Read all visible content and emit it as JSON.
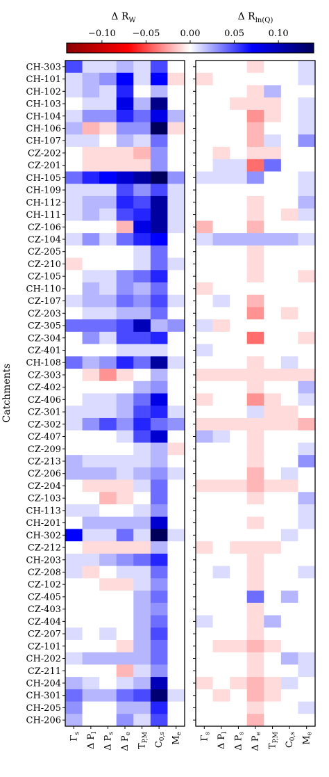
{
  "chart_data": {
    "type": "heatmap",
    "colorbar": {
      "label_left": "Δ R_W",
      "label_right": "Δ R_ln(Q)",
      "vmin": -0.14,
      "vmax": 0.14,
      "ticks": [
        -0.1,
        -0.05,
        0.0,
        0.05,
        0.1
      ],
      "tick_labels": [
        "−0.10",
        "−0.05",
        "0.00",
        "0.05",
        "0.10"
      ],
      "colormap": "seismic_r",
      "color_negative": "#8b0000",
      "color_zero": "#ffffff",
      "color_positive": "#00005a"
    },
    "ylabel": "Catchments",
    "columns": [
      {
        "base": "Γ",
        "sub": "s"
      },
      {
        "base": "Δ P",
        "sub": "l"
      },
      {
        "base": "Δ P",
        "sub": "s"
      },
      {
        "base": "Δ P",
        "sub": "e"
      },
      {
        "base": "T",
        "sub": "P,M"
      },
      {
        "base": "C",
        "sub": "0,s"
      },
      {
        "base": "M",
        "sub": "e"
      }
    ],
    "rows": [
      "CH-303",
      "CH-101",
      "CH-102",
      "CH-103",
      "CH-104",
      "CH-106",
      "CH-107",
      "CZ-202",
      "CZ-201",
      "CH-105",
      "CH-109",
      "CH-112",
      "CH-111",
      "CZ-106",
      "CZ-104",
      "CZ-205",
      "CZ-210",
      "CZ-105",
      "CH-110",
      "CZ-107",
      "CZ-203",
      "CZ-305",
      "CZ-304",
      "CZ-401",
      "CH-108",
      "CZ-303",
      "CZ-402",
      "CZ-406",
      "CZ-301",
      "CZ-302",
      "CZ-407",
      "CZ-209",
      "CZ-213",
      "CZ-206",
      "CZ-204",
      "CZ-103",
      "CH-113",
      "CH-201",
      "CH-302",
      "CZ-212",
      "CH-203",
      "CZ-208",
      "CZ-102",
      "CZ-405",
      "CZ-403",
      "CZ-404",
      "CZ-207",
      "CZ-101",
      "CH-202",
      "CZ-211",
      "CH-204",
      "CH-301",
      "CH-205",
      "CH-206"
    ],
    "panels": [
      {
        "name": "Δ R_W",
        "values": [
          [
            0.05,
            0.01,
            0.01,
            0.02,
            0.01,
            0.05,
            0.0
          ],
          [
            0.01,
            0.02,
            0.03,
            0.07,
            0.01,
            0.07,
            -0.01
          ],
          [
            0.01,
            0.02,
            0.01,
            0.06,
            0.0,
            0.02,
            0.0
          ],
          [
            0.0,
            0.01,
            0.01,
            0.08,
            0.02,
            0.12,
            0.0
          ],
          [
            0.01,
            0.03,
            0.03,
            0.06,
            0.04,
            0.08,
            0.02
          ],
          [
            0.02,
            -0.02,
            -0.01,
            0.03,
            0.03,
            0.14,
            -0.01
          ],
          [
            0.01,
            0.01,
            0.0,
            0.02,
            0.01,
            0.04,
            0.0
          ],
          [
            0.0,
            -0.01,
            -0.01,
            -0.01,
            -0.02,
            0.03,
            0.0
          ],
          [
            0.0,
            -0.01,
            -0.01,
            -0.01,
            -0.01,
            0.03,
            0.0
          ],
          [
            0.04,
            0.06,
            0.07,
            0.09,
            0.11,
            0.14,
            0.03
          ],
          [
            0.01,
            0.01,
            0.01,
            0.05,
            0.03,
            0.05,
            0.01
          ],
          [
            0.01,
            0.02,
            0.02,
            0.06,
            0.05,
            0.11,
            0.01
          ],
          [
            0.01,
            0.02,
            0.01,
            0.05,
            0.06,
            0.11,
            0.01
          ],
          [
            0.0,
            0.0,
            0.0,
            -0.02,
            0.08,
            0.11,
            0.01
          ],
          [
            0.01,
            0.03,
            0.01,
            0.04,
            0.06,
            0.07,
            0.0
          ],
          [
            0.0,
            0.0,
            0.0,
            0.0,
            0.01,
            0.04,
            0.0
          ],
          [
            -0.01,
            0.0,
            0.0,
            0.0,
            0.01,
            0.04,
            0.01
          ],
          [
            0.0,
            0.01,
            0.01,
            0.03,
            0.04,
            0.06,
            0.0
          ],
          [
            0.0,
            0.02,
            0.01,
            0.03,
            0.02,
            0.04,
            0.0
          ],
          [
            0.01,
            0.02,
            0.02,
            0.04,
            0.03,
            0.05,
            0.01
          ],
          [
            0.0,
            0.01,
            0.01,
            0.02,
            0.02,
            0.04,
            0.0
          ],
          [
            0.04,
            0.04,
            0.04,
            0.05,
            0.1,
            0.02,
            0.03
          ],
          [
            0.0,
            0.03,
            0.01,
            0.05,
            0.05,
            0.06,
            0.0
          ],
          [
            0.0,
            0.0,
            0.0,
            0.01,
            0.01,
            0.01,
            0.0
          ],
          [
            0.04,
            0.02,
            0.03,
            0.06,
            0.04,
            0.11,
            0.01
          ],
          [
            0.0,
            -0.01,
            -0.03,
            -0.01,
            0.0,
            0.02,
            0.0
          ],
          [
            0.0,
            0.0,
            0.0,
            0.0,
            0.02,
            0.03,
            0.0
          ],
          [
            0.0,
            0.01,
            0.01,
            0.02,
            0.04,
            0.08,
            0.0
          ],
          [
            0.01,
            0.01,
            0.01,
            0.02,
            0.05,
            0.06,
            0.01
          ],
          [
            0.01,
            0.03,
            0.05,
            0.03,
            0.06,
            0.04,
            0.03
          ],
          [
            0.0,
            0.0,
            0.0,
            0.01,
            0.05,
            0.09,
            0.0
          ],
          [
            0.0,
            0.0,
            0.0,
            0.0,
            0.01,
            0.02,
            -0.01
          ],
          [
            0.02,
            0.01,
            0.01,
            0.01,
            0.01,
            0.02,
            0.0
          ],
          [
            0.02,
            0.02,
            0.02,
            0.01,
            0.02,
            0.03,
            0.01
          ],
          [
            0.0,
            -0.01,
            -0.01,
            -0.01,
            0.01,
            0.04,
            0.0
          ],
          [
            0.0,
            0.0,
            -0.02,
            -0.01,
            0.0,
            0.04,
            0.0
          ],
          [
            0.01,
            0.01,
            0.0,
            0.0,
            0.01,
            0.03,
            0.0
          ],
          [
            0.0,
            0.02,
            0.02,
            0.02,
            0.02,
            0.09,
            0.0
          ],
          [
            0.07,
            0.01,
            0.01,
            0.04,
            0.01,
            0.14,
            0.01
          ],
          [
            0.0,
            -0.01,
            -0.01,
            -0.01,
            -0.01,
            0.02,
            0.0
          ],
          [
            0.01,
            0.01,
            0.02,
            0.03,
            0.04,
            0.06,
            0.0
          ],
          [
            0.01,
            -0.01,
            0.0,
            0.01,
            0.01,
            0.04,
            0.0
          ],
          [
            0.0,
            0.0,
            -0.01,
            -0.01,
            0.01,
            0.03,
            0.0
          ],
          [
            0.0,
            0.0,
            0.0,
            0.0,
            0.02,
            0.04,
            0.0
          ],
          [
            0.0,
            0.0,
            0.0,
            0.0,
            0.02,
            0.03,
            0.0
          ],
          [
            0.0,
            0.0,
            0.0,
            0.0,
            0.02,
            0.04,
            0.0
          ],
          [
            0.01,
            0.0,
            0.01,
            0.0,
            0.02,
            0.05,
            0.0
          ],
          [
            0.0,
            0.0,
            0.0,
            -0.01,
            0.02,
            0.04,
            0.0
          ],
          [
            0.01,
            0.02,
            0.02,
            0.02,
            0.02,
            0.04,
            0.0
          ],
          [
            0.0,
            0.0,
            0.0,
            -0.02,
            0.01,
            0.03,
            0.0
          ],
          [
            0.02,
            0.01,
            0.0,
            0.01,
            0.02,
            0.1,
            0.0
          ],
          [
            0.04,
            0.02,
            0.02,
            0.04,
            0.05,
            0.13,
            0.01
          ],
          [
            0.03,
            0.0,
            0.0,
            0.02,
            0.02,
            0.06,
            0.0
          ],
          [
            0.02,
            0.0,
            0.0,
            0.03,
            0.01,
            0.05,
            0.0
          ]
        ]
      },
      {
        "name": "Δ R_ln(Q)",
        "values": [
          [
            0.0,
            0.0,
            0.0,
            -0.01,
            0.0,
            0.0,
            0.01
          ],
          [
            -0.01,
            0.0,
            0.0,
            0.0,
            0.0,
            0.0,
            0.01
          ],
          [
            0.0,
            0.0,
            0.0,
            -0.01,
            0.02,
            0.0,
            0.0
          ],
          [
            0.0,
            0.0,
            -0.01,
            -0.01,
            -0.01,
            0.0,
            0.01
          ],
          [
            0.0,
            0.0,
            0.0,
            -0.03,
            -0.01,
            0.0,
            0.01
          ],
          [
            0.0,
            0.0,
            0.0,
            -0.02,
            0.0,
            0.0,
            0.01
          ],
          [
            0.0,
            0.0,
            0.0,
            -0.02,
            0.01,
            0.0,
            0.03
          ],
          [
            0.0,
            -0.01,
            0.0,
            -0.01,
            -0.01,
            0.0,
            0.0
          ],
          [
            0.0,
            0.01,
            0.01,
            -0.04,
            0.04,
            0.0,
            0.0
          ],
          [
            0.01,
            0.01,
            0.01,
            0.03,
            0.0,
            0.0,
            0.01
          ],
          [
            0.0,
            0.0,
            0.0,
            0.0,
            0.0,
            0.0,
            0.01
          ],
          [
            0.0,
            0.0,
            0.0,
            -0.01,
            0.0,
            0.0,
            0.02
          ],
          [
            0.0,
            0.0,
            0.0,
            -0.01,
            0.0,
            -0.01,
            0.01
          ],
          [
            -0.02,
            0.0,
            0.0,
            -0.02,
            0.0,
            0.0,
            0.0
          ],
          [
            0.01,
            0.02,
            0.02,
            0.02,
            0.02,
            0.02,
            0.01
          ],
          [
            0.0,
            0.0,
            0.0,
            -0.01,
            0.0,
            0.0,
            0.0
          ],
          [
            0.0,
            0.0,
            0.0,
            -0.01,
            0.0,
            0.0,
            0.0
          ],
          [
            0.0,
            0.0,
            0.0,
            -0.01,
            0.0,
            0.0,
            -0.01
          ],
          [
            -0.01,
            0.0,
            0.0,
            0.0,
            0.0,
            0.0,
            0.0
          ],
          [
            0.0,
            0.01,
            0.0,
            -0.02,
            0.0,
            0.0,
            0.0
          ],
          [
            0.0,
            0.0,
            0.0,
            -0.03,
            0.0,
            -0.01,
            0.0
          ],
          [
            0.01,
            -0.01,
            0.0,
            0.0,
            0.0,
            0.0,
            0.0
          ],
          [
            0.0,
            0.0,
            0.0,
            -0.04,
            0.0,
            0.0,
            -0.01
          ],
          [
            0.01,
            0.0,
            0.0,
            0.0,
            0.0,
            0.0,
            0.0
          ],
          [
            0.0,
            0.0,
            0.0,
            -0.01,
            0.0,
            0.01,
            0.0
          ],
          [
            -0.01,
            -0.01,
            -0.01,
            -0.01,
            -0.01,
            -0.01,
            -0.01
          ],
          [
            0.0,
            0.0,
            0.0,
            -0.01,
            0.0,
            0.0,
            0.02
          ],
          [
            -0.01,
            0.0,
            0.0,
            -0.03,
            -0.01,
            0.0,
            0.01
          ],
          [
            0.0,
            0.0,
            0.0,
            0.01,
            -0.01,
            -0.01,
            0.0
          ],
          [
            -0.01,
            -0.01,
            -0.01,
            -0.01,
            -0.01,
            -0.01,
            -0.02
          ],
          [
            0.02,
            0.01,
            0.0,
            -0.01,
            0.0,
            0.0,
            0.0
          ],
          [
            0.0,
            0.0,
            0.0,
            -0.01,
            0.0,
            0.0,
            0.01
          ],
          [
            0.0,
            0.0,
            0.0,
            -0.01,
            0.0,
            0.0,
            0.03
          ],
          [
            0.0,
            0.0,
            0.0,
            -0.02,
            0.0,
            0.01,
            0.0
          ],
          [
            -0.01,
            -0.01,
            -0.01,
            -0.02,
            -0.01,
            -0.01,
            0.0
          ],
          [
            0.0,
            0.0,
            0.0,
            -0.01,
            0.0,
            0.0,
            0.02
          ],
          [
            0.0,
            0.0,
            0.0,
            0.0,
            0.0,
            0.0,
            0.01
          ],
          [
            0.0,
            0.0,
            0.0,
            -0.01,
            0.0,
            0.0,
            0.01
          ],
          [
            0.0,
            0.0,
            0.0,
            0.0,
            0.0,
            0.01,
            0.0
          ],
          [
            -0.01,
            0.0,
            -0.01,
            -0.01,
            -0.01,
            0.0,
            0.0
          ],
          [
            0.0,
            0.0,
            0.0,
            -0.01,
            0.0,
            0.0,
            0.0
          ],
          [
            0.0,
            0.01,
            0.0,
            -0.01,
            0.0,
            0.0,
            0.01
          ],
          [
            0.0,
            0.0,
            0.0,
            -0.01,
            0.0,
            0.0,
            0.0
          ],
          [
            0.0,
            0.0,
            0.0,
            0.04,
            0.0,
            0.02,
            0.0
          ],
          [
            0.0,
            0.0,
            0.0,
            -0.01,
            0.0,
            0.0,
            0.0
          ],
          [
            0.01,
            0.0,
            0.0,
            -0.01,
            0.02,
            0.0,
            0.0
          ],
          [
            0.0,
            0.0,
            0.0,
            -0.01,
            0.0,
            0.0,
            0.0
          ],
          [
            0.0,
            -0.01,
            -0.01,
            -0.02,
            -0.01,
            0.0,
            0.0
          ],
          [
            0.0,
            0.0,
            0.0,
            -0.01,
            0.0,
            0.02,
            0.01
          ],
          [
            0.0,
            0.0,
            0.0,
            -0.01,
            0.0,
            0.0,
            0.01
          ],
          [
            -0.01,
            0.0,
            -0.01,
            -0.02,
            -0.01,
            0.01,
            0.0
          ],
          [
            0.0,
            -0.01,
            0.0,
            -0.02,
            -0.01,
            0.0,
            0.0
          ],
          [
            0.0,
            0.0,
            0.0,
            -0.01,
            0.0,
            0.0,
            0.01
          ],
          [
            0.0,
            0.0,
            0.0,
            -0.02,
            0.0,
            0.0,
            0.0
          ]
        ]
      }
    ]
  }
}
